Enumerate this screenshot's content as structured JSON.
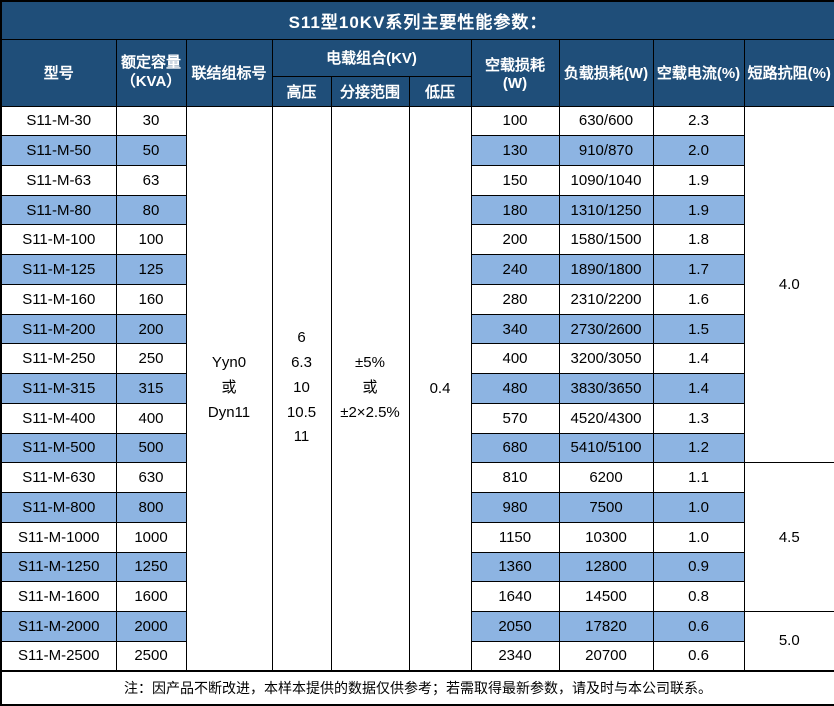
{
  "colors": {
    "header_bg": "#1F4E79",
    "stripe_bg": "#8DB4E2",
    "border": "#000000",
    "title_text": "#ffffff"
  },
  "table": {
    "title": "S11型10KV系列主要性能参数：",
    "header": {
      "model": "型号",
      "capacity": "额定容量\n（KVA）",
      "connection": "联结组标号",
      "load_combo": "电载组合(KV)",
      "hv": "高压",
      "tap_range": "分接范围",
      "lv": "低压",
      "no_load_loss": "空载损耗(W)",
      "load_loss": "负载损耗(W)",
      "no_load_current": "空载电流(%)",
      "impedance": "短路抗阻(%)"
    },
    "merged": {
      "connection": [
        "Yyn0",
        "或",
        "Dyn11"
      ],
      "hv": [
        "6",
        "6.3",
        "10",
        "10.5",
        "11"
      ],
      "tap_range": [
        "±5%",
        "或",
        "±2×2.5%"
      ],
      "lv": "0.4"
    },
    "impedance_groups": [
      {
        "value": "4.0",
        "span": 12
      },
      {
        "value": "4.5",
        "span": 5
      },
      {
        "value": "5.0",
        "span": 2
      }
    ],
    "rows": [
      {
        "model": "S11-M-30",
        "capacity": "30",
        "no_load_loss": "100",
        "load_loss": "630/600",
        "no_load_current": "2.3"
      },
      {
        "model": "S11-M-50",
        "capacity": "50",
        "no_load_loss": "130",
        "load_loss": "910/870",
        "no_load_current": "2.0"
      },
      {
        "model": "S11-M-63",
        "capacity": "63",
        "no_load_loss": "150",
        "load_loss": "1090/1040",
        "no_load_current": "1.9"
      },
      {
        "model": "S11-M-80",
        "capacity": "80",
        "no_load_loss": "180",
        "load_loss": "1310/1250",
        "no_load_current": "1.9"
      },
      {
        "model": "S11-M-100",
        "capacity": "100",
        "no_load_loss": "200",
        "load_loss": "1580/1500",
        "no_load_current": "1.8"
      },
      {
        "model": "S11-M-125",
        "capacity": "125",
        "no_load_loss": "240",
        "load_loss": "1890/1800",
        "no_load_current": "1.7"
      },
      {
        "model": "S11-M-160",
        "capacity": "160",
        "no_load_loss": "280",
        "load_loss": "2310/2200",
        "no_load_current": "1.6"
      },
      {
        "model": "S11-M-200",
        "capacity": "200",
        "no_load_loss": "340",
        "load_loss": "2730/2600",
        "no_load_current": "1.5"
      },
      {
        "model": "S11-M-250",
        "capacity": "250",
        "no_load_loss": "400",
        "load_loss": "3200/3050",
        "no_load_current": "1.4"
      },
      {
        "model": "S11-M-315",
        "capacity": "315",
        "no_load_loss": "480",
        "load_loss": "3830/3650",
        "no_load_current": "1.4"
      },
      {
        "model": "S11-M-400",
        "capacity": "400",
        "no_load_loss": "570",
        "load_loss": "4520/4300",
        "no_load_current": "1.3"
      },
      {
        "model": "S11-M-500",
        "capacity": "500",
        "no_load_loss": "680",
        "load_loss": "5410/5100",
        "no_load_current": "1.2"
      },
      {
        "model": "S11-M-630",
        "capacity": "630",
        "no_load_loss": "810",
        "load_loss": "6200",
        "no_load_current": "1.1"
      },
      {
        "model": "S11-M-800",
        "capacity": "800",
        "no_load_loss": "980",
        "load_loss": "7500",
        "no_load_current": "1.0"
      },
      {
        "model": "S11-M-1000",
        "capacity": "1000",
        "no_load_loss": "1150",
        "load_loss": "10300",
        "no_load_current": "1.0"
      },
      {
        "model": "S11-M-1250",
        "capacity": "1250",
        "no_load_loss": "1360",
        "load_loss": "12800",
        "no_load_current": "0.9"
      },
      {
        "model": "S11-M-1600",
        "capacity": "1600",
        "no_load_loss": "1640",
        "load_loss": "14500",
        "no_load_current": "0.8"
      },
      {
        "model": "S11-M-2000",
        "capacity": "2000",
        "no_load_loss": "2050",
        "load_loss": "17820",
        "no_load_current": "0.6"
      },
      {
        "model": "S11-M-2500",
        "capacity": "2500",
        "no_load_loss": "2340",
        "load_loss": "20700",
        "no_load_current": "0.6"
      }
    ],
    "footer_note": "注：因产品不断改进，本样本提供的数据仅供参考；若需取得最新参数，请及时与本公司联系。"
  }
}
